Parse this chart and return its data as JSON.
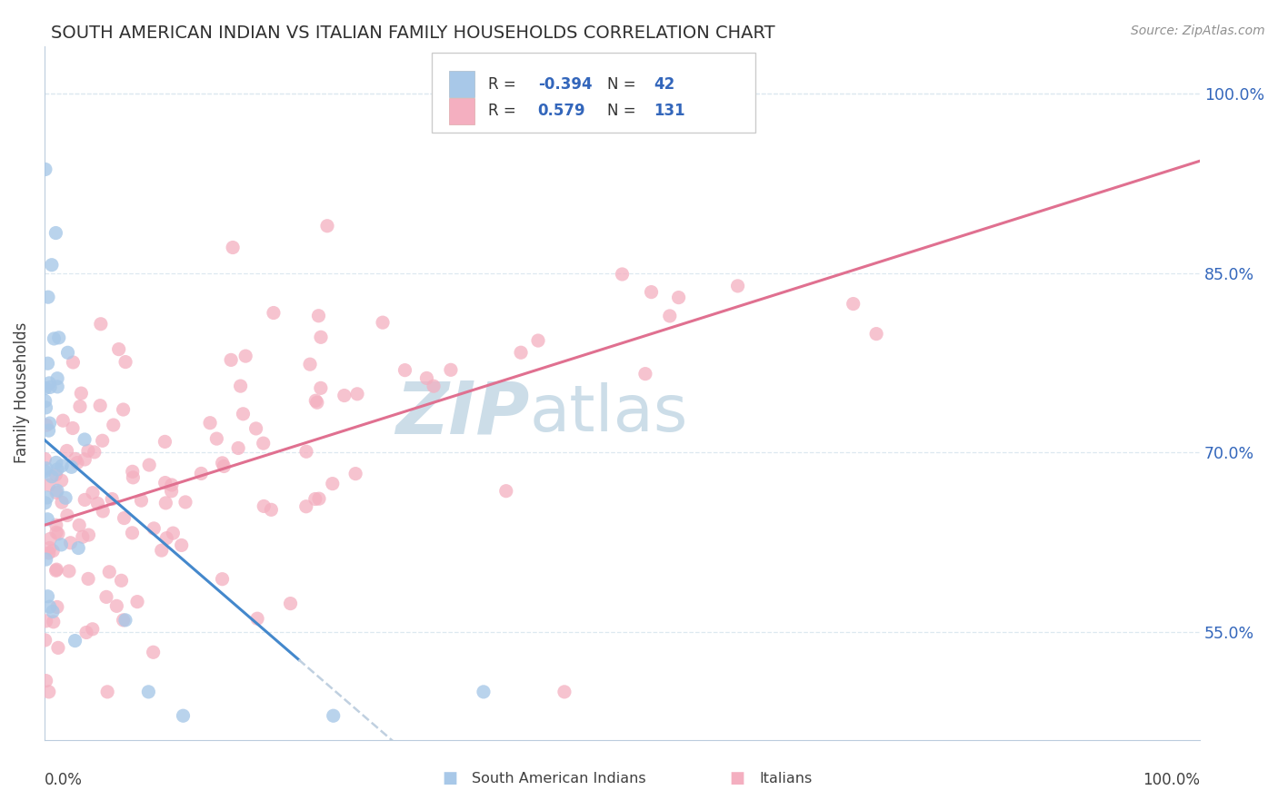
{
  "title": "SOUTH AMERICAN INDIAN VS ITALIAN FAMILY HOUSEHOLDS CORRELATION CHART",
  "source": "Source: ZipAtlas.com",
  "ylabel": "Family Households",
  "xlim": [
    0.0,
    1.0
  ],
  "ylim": [
    0.46,
    1.04
  ],
  "ytick_vals": [
    0.55,
    0.7,
    0.85,
    1.0
  ],
  "ytick_labels": [
    "55.0%",
    "70.0%",
    "85.0%",
    "100.0%"
  ],
  "r_blue": -0.394,
  "n_blue": 42,
  "r_pink": 0.579,
  "n_pink": 131,
  "blue_color": "#a8c8e8",
  "pink_color": "#f4afc0",
  "blue_line_color": "#4488cc",
  "pink_line_color": "#e07090",
  "dashed_line_color": "#c0d0e0",
  "grid_color": "#dde8f0",
  "title_color": "#303030",
  "axis_label_color": "#404040",
  "source_color": "#909090",
  "legend_r_color": "#3366bb",
  "watermark_color": "#ccdde8",
  "legend_labels": [
    "South American Indians",
    "Italians"
  ],
  "figsize": [
    14.06,
    8.92
  ],
  "dpi": 100
}
